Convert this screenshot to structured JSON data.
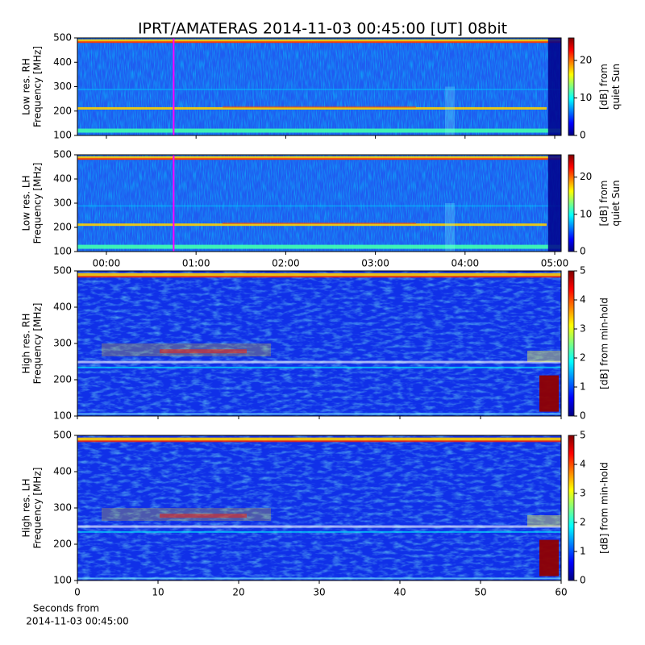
{
  "title": "IPRT/AMATERAS 2014-11-03 00:45:00 [UT]   08bit",
  "chart_data": [
    {
      "type": "heatmap",
      "ylabel": [
        "Low res. RH",
        "Frequency [MHz]"
      ],
      "ylim": [
        100,
        500
      ],
      "yticks": [
        100,
        200,
        300,
        400,
        500
      ],
      "marker_x": 45,
      "marker_color": "#ff00ff",
      "clim": [
        0,
        26
      ],
      "cticks": [
        0,
        10,
        20
      ],
      "clabel": [
        "[dB] from",
        "quiet Sun"
      ],
      "colormap": "jet"
    },
    {
      "type": "heatmap",
      "ylabel": [
        "Low res. LH",
        "Frequency [MHz]"
      ],
      "ylim": [
        100,
        500
      ],
      "yticks": [
        100,
        200,
        300,
        400,
        500
      ],
      "xlim": [
        -19.4,
        304.3
      ],
      "xticks": [
        {
          "value": 0,
          "label": "00:00"
        },
        {
          "value": 60,
          "label": "01:00"
        },
        {
          "value": 120,
          "label": "02:00"
        },
        {
          "value": 180,
          "label": "03:00"
        },
        {
          "value": 240,
          "label": "04:00"
        },
        {
          "value": 300,
          "label": "05:00"
        }
      ],
      "marker_x": 45,
      "marker_color": "#ff00ff",
      "clim": [
        0,
        26
      ],
      "cticks": [
        0,
        10,
        20
      ],
      "clabel": [
        "[dB] from",
        "quiet Sun"
      ],
      "colormap": "jet"
    },
    {
      "type": "heatmap",
      "ylabel": [
        "High res. RH",
        "Frequency [MHz]"
      ],
      "ylim": [
        100,
        500
      ],
      "yticks": [
        100,
        200,
        300,
        400,
        500
      ],
      "clim": [
        0,
        5
      ],
      "cticks": [
        0,
        1,
        2,
        3,
        4,
        5
      ],
      "clabel": [
        "[dB] from min-hold"
      ],
      "colormap": "jet"
    },
    {
      "type": "heatmap",
      "ylabel": [
        "High res. LH",
        "Frequency [MHz]"
      ],
      "ylim": [
        100,
        500
      ],
      "yticks": [
        100,
        200,
        300,
        400,
        500
      ],
      "xlim": [
        0,
        60
      ],
      "xticks": [
        0,
        10,
        20,
        30,
        40,
        50,
        60
      ],
      "xlabel": [
        "Seconds from",
        "2014-11-03 00:45:00"
      ],
      "clim": [
        0,
        5
      ],
      "cticks": [
        0,
        1,
        2,
        3,
        4,
        5
      ],
      "clabel": [
        "[dB] from min-hold"
      ],
      "colormap": "jet"
    }
  ]
}
